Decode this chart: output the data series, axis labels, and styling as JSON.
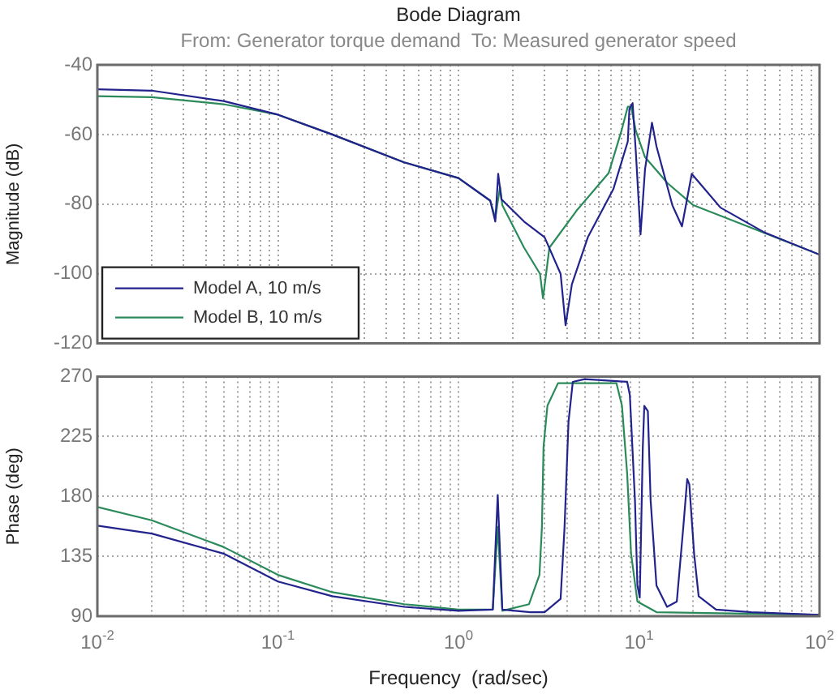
{
  "chart_data": [
    {
      "type": "line",
      "title": "Bode Diagram",
      "subtitle": "From: Generator torque demand  To: Measured generator speed",
      "ylabel": "Magnitude (dB)",
      "log": "x",
      "grid": true,
      "legend": "bottom left",
      "tick_labels": "y",
      "xlim": [
        0.01,
        100
      ],
      "ylim": [
        -120,
        -40
      ],
      "yticks": [
        -120,
        -100,
        -80,
        -60,
        -40
      ],
      "xticks": [
        {
          "value": 0.01,
          "label": null
        },
        {
          "value": 0.02,
          "label": null
        },
        {
          "value": 0.03,
          "label": null
        },
        {
          "value": 0.04,
          "label": null
        },
        {
          "value": 0.05,
          "label": null
        },
        {
          "value": 0.06,
          "label": null
        },
        {
          "value": 0.07,
          "label": null
        },
        {
          "value": 0.08,
          "label": null
        },
        {
          "value": 0.09,
          "label": null
        },
        {
          "value": 0.1,
          "label": null
        },
        {
          "value": 0.2,
          "label": null
        },
        {
          "value": 0.3,
          "label": null
        },
        {
          "value": 0.4,
          "label": null
        },
        {
          "value": 0.5,
          "label": null
        },
        {
          "value": 0.6,
          "label": null
        },
        {
          "value": 0.7,
          "label": null
        },
        {
          "value": 0.8,
          "label": null
        },
        {
          "value": 0.9,
          "label": null
        },
        {
          "value": 1,
          "label": null
        },
        {
          "value": 2,
          "label": null
        },
        {
          "value": 3,
          "label": null
        },
        {
          "value": 4,
          "label": null
        },
        {
          "value": 5,
          "label": null
        },
        {
          "value": 6,
          "label": null
        },
        {
          "value": 7,
          "label": null
        },
        {
          "value": 8,
          "label": null
        },
        {
          "value": 9,
          "label": null
        },
        {
          "value": 10,
          "label": null
        },
        {
          "value": 20,
          "label": null
        },
        {
          "value": 30,
          "label": null
        },
        {
          "value": 40,
          "label": null
        },
        {
          "value": 50,
          "label": null
        },
        {
          "value": 60,
          "label": null
        },
        {
          "value": 70,
          "label": null
        },
        {
          "value": 80,
          "label": null
        },
        {
          "value": 90,
          "label": null
        },
        {
          "value": 100,
          "label": null
        }
      ],
      "series": [
        {
          "name": "Model A, 10 m/s",
          "color": "#23238e",
          "x": [
            0.01,
            0.02,
            0.05,
            0.1,
            0.2,
            0.5,
            1,
            1.5,
            1.6,
            1.66,
            1.73,
            2.31,
            3.0,
            3.68,
            3.92,
            4.25,
            5.21,
            7.21,
            8.67,
            8.85,
            9.22,
            9.6,
            10.2,
            10.8,
            11.8,
            12.5,
            15.3,
            17.3,
            19.6,
            21.7,
            28.3,
            49,
            100
          ],
          "values": [
            -47,
            -47.4,
            -50.4,
            -54.3,
            -60,
            -68,
            -72.5,
            -79,
            -85,
            -71.3,
            -78.6,
            -85,
            -89.5,
            -100,
            -114.8,
            -103,
            -89.5,
            -75.7,
            -62,
            -52.7,
            -51,
            -64.8,
            -88.7,
            -70,
            -56.6,
            -63.4,
            -80.3,
            -86.4,
            -71.3,
            -74,
            -81,
            -88,
            -94.5
          ]
        },
        {
          "name": "Model B, 10 m/s",
          "color": "#2a8a5a",
          "x": [
            0.01,
            0.02,
            0.05,
            0.1,
            0.2,
            0.5,
            1,
            1.5,
            1.6,
            1.7,
            1.75,
            2.31,
            2.83,
            2.94,
            3.19,
            4.52,
            6.79,
            8.0,
            8.67,
            9.04,
            9.6,
            10.8,
            14.4,
            20,
            40,
            100
          ],
          "values": [
            -49,
            -49.3,
            -51.3,
            -54.3,
            -60,
            -68,
            -72.5,
            -79,
            -84,
            -75,
            -80.3,
            -92.5,
            -100,
            -107,
            -92.5,
            -81.8,
            -71.1,
            -58.9,
            -52,
            -52,
            -58.9,
            -66.5,
            -74,
            -80.3,
            -86.4,
            -94.5
          ]
        }
      ]
    },
    {
      "type": "line",
      "xlabel": "Frequency  (rad/sec)",
      "ylabel": "Phase (deg)",
      "log": "x",
      "grid": true,
      "xlim": [
        0.01,
        100
      ],
      "ylim": [
        90,
        270
      ],
      "yticks": [
        90,
        135,
        180,
        225,
        270
      ],
      "xticks": [
        {
          "value": 0.01,
          "label": "10$^{-2}$"
        },
        {
          "value": 0.02,
          "label": null
        },
        {
          "value": 0.03,
          "label": null
        },
        {
          "value": 0.04,
          "label": null
        },
        {
          "value": 0.05,
          "label": null
        },
        {
          "value": 0.06,
          "label": null
        },
        {
          "value": 0.07,
          "label": null
        },
        {
          "value": 0.08,
          "label": null
        },
        {
          "value": 0.09,
          "label": null
        },
        {
          "value": 0.1,
          "label": "10$^{-1}$"
        },
        {
          "value": 0.2,
          "label": null
        },
        {
          "value": 0.3,
          "label": null
        },
        {
          "value": 0.4,
          "label": null
        },
        {
          "value": 0.5,
          "label": null
        },
        {
          "value": 0.6,
          "label": null
        },
        {
          "value": 0.7,
          "label": null
        },
        {
          "value": 0.8,
          "label": null
        },
        {
          "value": 0.9,
          "label": null
        },
        {
          "value": 1,
          "label": "10$^{0}$"
        },
        {
          "value": 2,
          "label": null
        },
        {
          "value": 3,
          "label": null
        },
        {
          "value": 4,
          "label": null
        },
        {
          "value": 5,
          "label": null
        },
        {
          "value": 6,
          "label": null
        },
        {
          "value": 7,
          "label": null
        },
        {
          "value": 8,
          "label": null
        },
        {
          "value": 9,
          "label": null
        },
        {
          "value": 10,
          "label": "10$^{1}$"
        },
        {
          "value": 20,
          "label": null
        },
        {
          "value": 30,
          "label": null
        },
        {
          "value": 40,
          "label": null
        },
        {
          "value": 50,
          "label": null
        },
        {
          "value": 60,
          "label": null
        },
        {
          "value": 70,
          "label": null
        },
        {
          "value": 80,
          "label": null
        },
        {
          "value": 90,
          "label": null
        },
        {
          "value": 100,
          "label": "10$^{2}$"
        }
      ],
      "series": [
        {
          "color": "#23238e",
          "x": [
            0.01,
            0.02,
            0.05,
            0.1,
            0.2,
            0.5,
            1,
            1.55,
            1.65,
            1.75,
            2.5,
            3.0,
            3.68,
            3.87,
            4.07,
            4.3,
            5,
            8.6,
            8.9,
            9.5,
            9.8,
            10.1,
            10.5,
            10.7,
            11.2,
            11.6,
            12.5,
            14.3,
            16.2,
            17.6,
            18.5,
            19,
            20.2,
            21.4,
            26.7,
            42,
            100
          ],
          "values": [
            158,
            152,
            137,
            116,
            105,
            97,
            94,
            95,
            181,
            95,
            93,
            93,
            103,
            157,
            236,
            266,
            268,
            266,
            256,
            177,
            113,
            104,
            217,
            248,
            244,
            177,
            113,
            97,
            101,
            157,
            193,
            189,
            137,
            105,
            95,
            93,
            91
          ]
        },
        {
          "color": "#2a8a5a",
          "x": [
            0.01,
            0.02,
            0.05,
            0.1,
            0.2,
            0.5,
            1,
            1.55,
            1.65,
            1.75,
            2.46,
            2.81,
            2.9,
            2.96,
            3.11,
            3.56,
            7.5,
            8.05,
            8.6,
            9.04,
            9.8,
            12.5,
            100
          ],
          "values": [
            172,
            162,
            142,
            121,
            108,
            99,
            95,
            95,
            157,
            94,
            99,
            121,
            157,
            217,
            248,
            265,
            265,
            248,
            197,
            137,
            101,
            93,
            91
          ]
        }
      ]
    }
  ]
}
